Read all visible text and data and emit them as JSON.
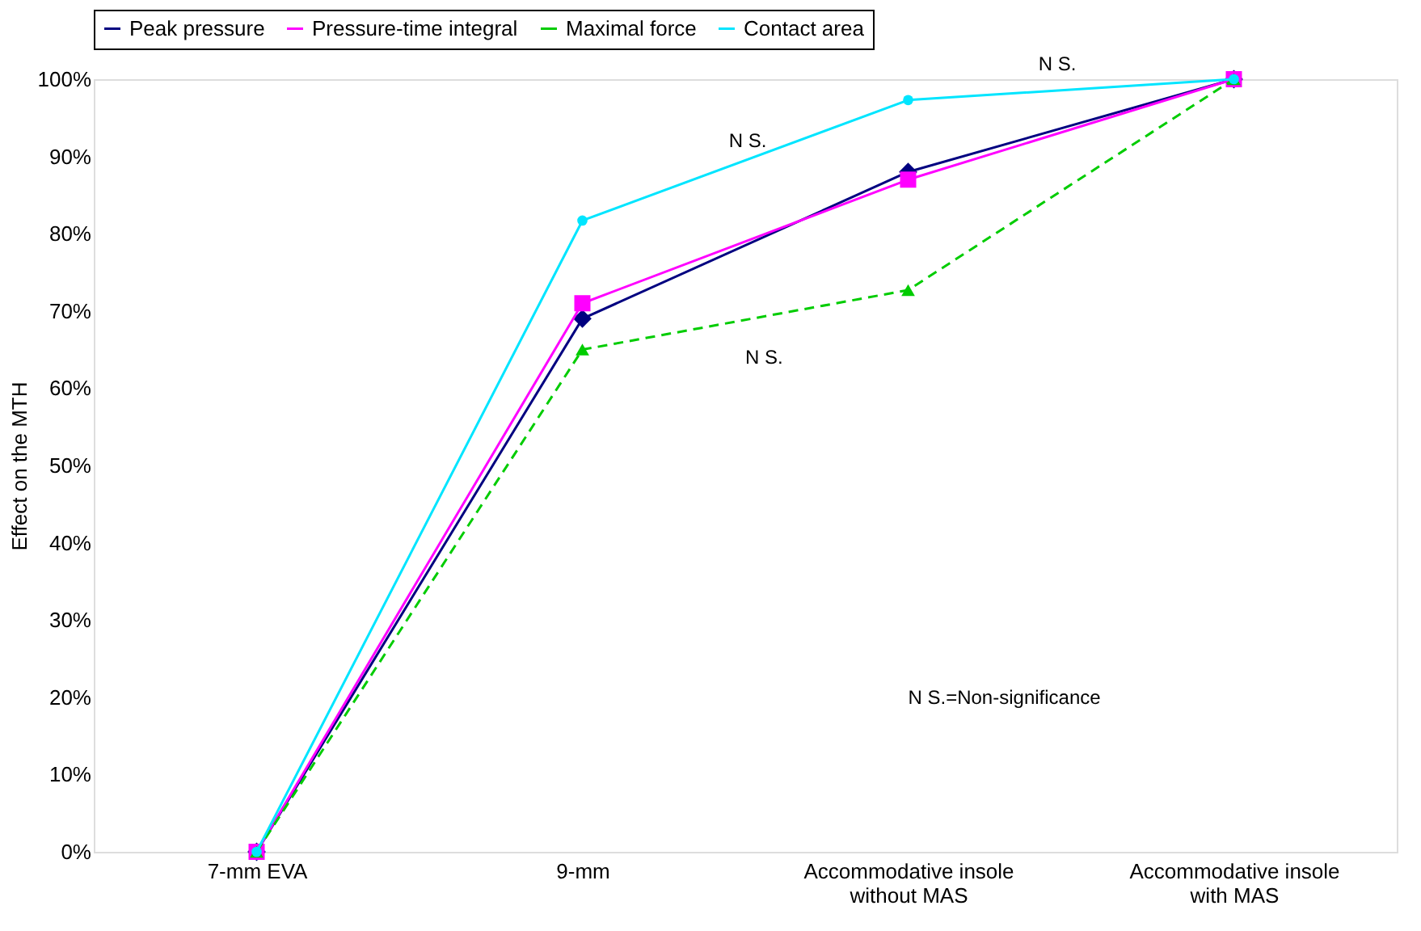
{
  "chart_data": {
    "type": "line",
    "ylabel": "Effect on the MTH",
    "categories": [
      "7-mm EVA",
      "9-mm",
      "Accommodative insole\nwithout MAS",
      "Accommodative insole\nwith MAS"
    ],
    "series": [
      {
        "name": "Peak pressure",
        "color": "#000080",
        "marker": "diamond",
        "line_style": "solid",
        "values": [
          0,
          69,
          88,
          100
        ]
      },
      {
        "name": "Pressure-time integral",
        "color": "#ff00ff",
        "marker": "square",
        "line_style": "solid",
        "values": [
          0,
          71,
          87,
          100
        ]
      },
      {
        "name": "Maximal force",
        "color": "#00cc00",
        "marker": "triangle",
        "line_style": "dashed",
        "values": [
          0,
          65,
          72.7,
          100
        ]
      },
      {
        "name": "Contact area",
        "color": "#00e5ff",
        "marker": "circle",
        "line_style": "solid",
        "values": [
          0,
          81.7,
          97.3,
          100
        ]
      }
    ],
    "ylim": [
      0,
      100
    ],
    "yticks": [
      {
        "value": 0,
        "label": "0%"
      },
      {
        "value": 10,
        "label": "10%"
      },
      {
        "value": 20,
        "label": "20%"
      },
      {
        "value": 30,
        "label": "30%"
      },
      {
        "value": 40,
        "label": "40%"
      },
      {
        "value": 50,
        "label": "50%"
      },
      {
        "value": 60,
        "label": "60%"
      },
      {
        "value": 70,
        "label": "70%"
      },
      {
        "value": 80,
        "label": "80%"
      },
      {
        "value": 90,
        "label": "90%"
      },
      {
        "value": 100,
        "label": "100%"
      }
    ],
    "annotations": [
      "N S.",
      "N S.",
      "N S.",
      "N S.=Non-significance"
    ],
    "legend": "top",
    "grid": false
  }
}
